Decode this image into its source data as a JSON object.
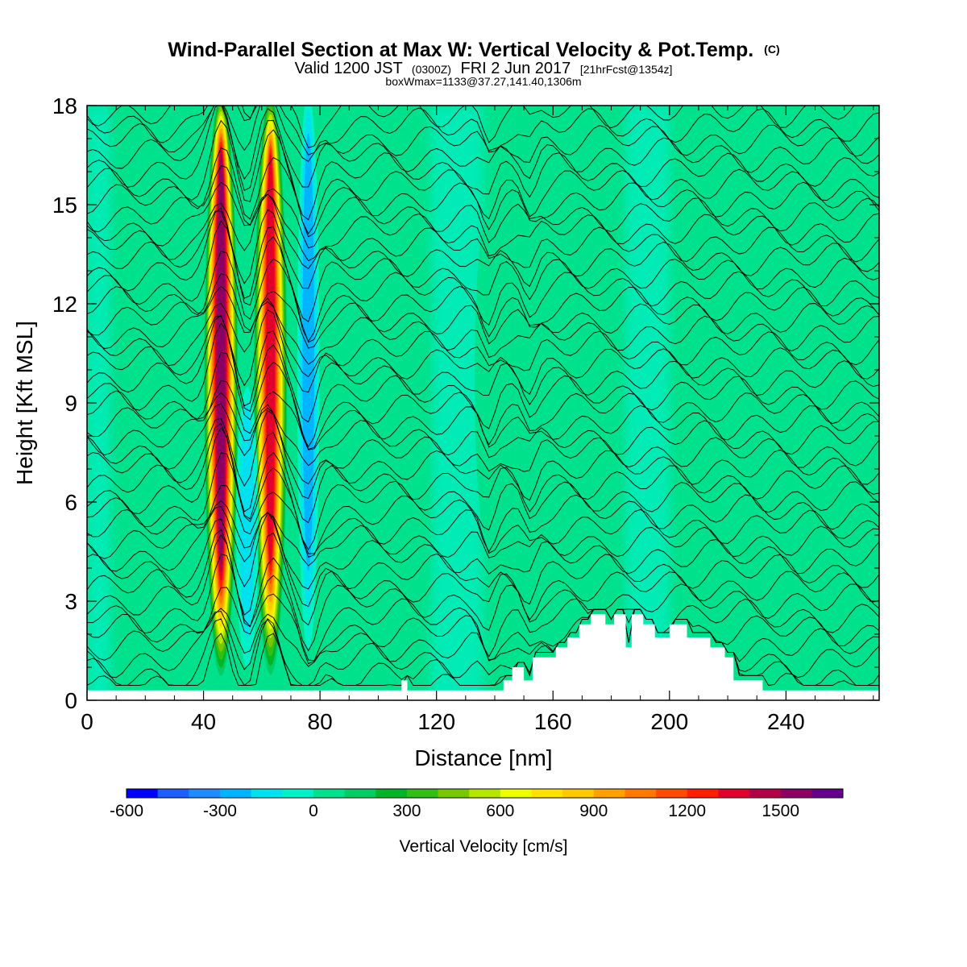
{
  "chart_data": {
    "type": "heatmap",
    "title": "Wind-Parallel Section at Max W: Vertical Velocity & Pot.Temp.",
    "title_mark": "(C)",
    "subtitle": {
      "prefix": "Valid 1200 JST",
      "utc": "(0300Z)",
      "date": "FRI 2 Jun 2017",
      "forecast": "[21hrFcst@1354z]"
    },
    "annotation": "boxWmax=1133@37.27,141.40,1306m",
    "xlabel": "Distance [nm]",
    "ylabel": "Height [Kft MSL]",
    "xlim": [
      0,
      272
    ],
    "ylim": [
      0,
      18
    ],
    "x_ticks": [
      "0",
      "40",
      "80",
      "120",
      "160",
      "200",
      "240"
    ],
    "y_ticks": [
      "0",
      "3",
      "6",
      "9",
      "12",
      "15",
      "18"
    ],
    "colorbar": {
      "label": "Vertical Velocity [cm/s]",
      "range": [
        -600,
        1700
      ],
      "step": 100,
      "tick_labels": [
        "-600",
        "-300",
        "0",
        "300",
        "600",
        "900",
        "1200",
        "1500"
      ],
      "colors": [
        "#0000ff",
        "#1e5dff",
        "#1e8cff",
        "#00b4ff",
        "#00e1f0",
        "#00f0c8",
        "#00e18c",
        "#00cd64",
        "#00b428",
        "#32be14",
        "#78c800",
        "#b4e600",
        "#f0ff00",
        "#ffe100",
        "#ffc800",
        "#ffa000",
        "#ff7800",
        "#ff4b00",
        "#ff1e00",
        "#e1002d",
        "#b40046",
        "#8c0064",
        "#64008c"
      ]
    },
    "vertical_velocity_features": [
      {
        "center_nm": 46,
        "w_max_cm_s": 1600,
        "base_kft": 0.5,
        "top_kft": 18
      },
      {
        "center_nm": 63,
        "w_max_cm_s": 1400,
        "base_kft": 0.5,
        "top_kft": 18
      },
      {
        "center_nm": 55,
        "w_max_cm_s": -200,
        "base_kft": 1.0,
        "top_kft": 9
      },
      {
        "center_nm": 76,
        "w_max_cm_s": -350,
        "base_kft": 1.5,
        "top_kft": 18
      },
      {
        "center_nm": 137,
        "w_max_cm_s": 150,
        "base_kft": 5,
        "top_kft": 14
      },
      {
        "center_nm": 152,
        "w_max_cm_s": 150,
        "base_kft": 8,
        "top_kft": 15
      },
      {
        "center_nm": 213,
        "w_max_cm_s": 120,
        "base_kft": 6,
        "top_kft": 11
      }
    ],
    "terrain_kft": [
      [
        0,
        0.3
      ],
      [
        108,
        0.3
      ],
      [
        108,
        0.6
      ],
      [
        110,
        0.6
      ],
      [
        110,
        0.3
      ],
      [
        143,
        0.3
      ],
      [
        143,
        0.6
      ],
      [
        146,
        0.6
      ],
      [
        146,
        1.0
      ],
      [
        150,
        1.0
      ],
      [
        150,
        0.6
      ],
      [
        153,
        0.6
      ],
      [
        153,
        1.3
      ],
      [
        161,
        1.3
      ],
      [
        161,
        1.6
      ],
      [
        165,
        1.6
      ],
      [
        165,
        1.9
      ],
      [
        169,
        1.9
      ],
      [
        169,
        2.3
      ],
      [
        173,
        2.3
      ],
      [
        173,
        2.6
      ],
      [
        178,
        2.6
      ],
      [
        178,
        2.3
      ],
      [
        181,
        2.3
      ],
      [
        181,
        2.6
      ],
      [
        185,
        2.6
      ],
      [
        185,
        1.6
      ],
      [
        187,
        1.6
      ],
      [
        187,
        2.6
      ],
      [
        191,
        2.6
      ],
      [
        191,
        2.3
      ],
      [
        195,
        2.3
      ],
      [
        195,
        1.9
      ],
      [
        200,
        1.9
      ],
      [
        200,
        2.3
      ],
      [
        206,
        2.3
      ],
      [
        206,
        1.9
      ],
      [
        214,
        1.9
      ],
      [
        214,
        1.6
      ],
      [
        219,
        1.6
      ],
      [
        219,
        1.3
      ],
      [
        222,
        1.3
      ],
      [
        222,
        0.6
      ],
      [
        232,
        0.6
      ],
      [
        232,
        0.3
      ],
      [
        272,
        0.3
      ]
    ],
    "potential_temperature_isentropes": {
      "count": 40,
      "lowest_base_kft": 0.3,
      "spacing_kft": 0.45
    }
  }
}
